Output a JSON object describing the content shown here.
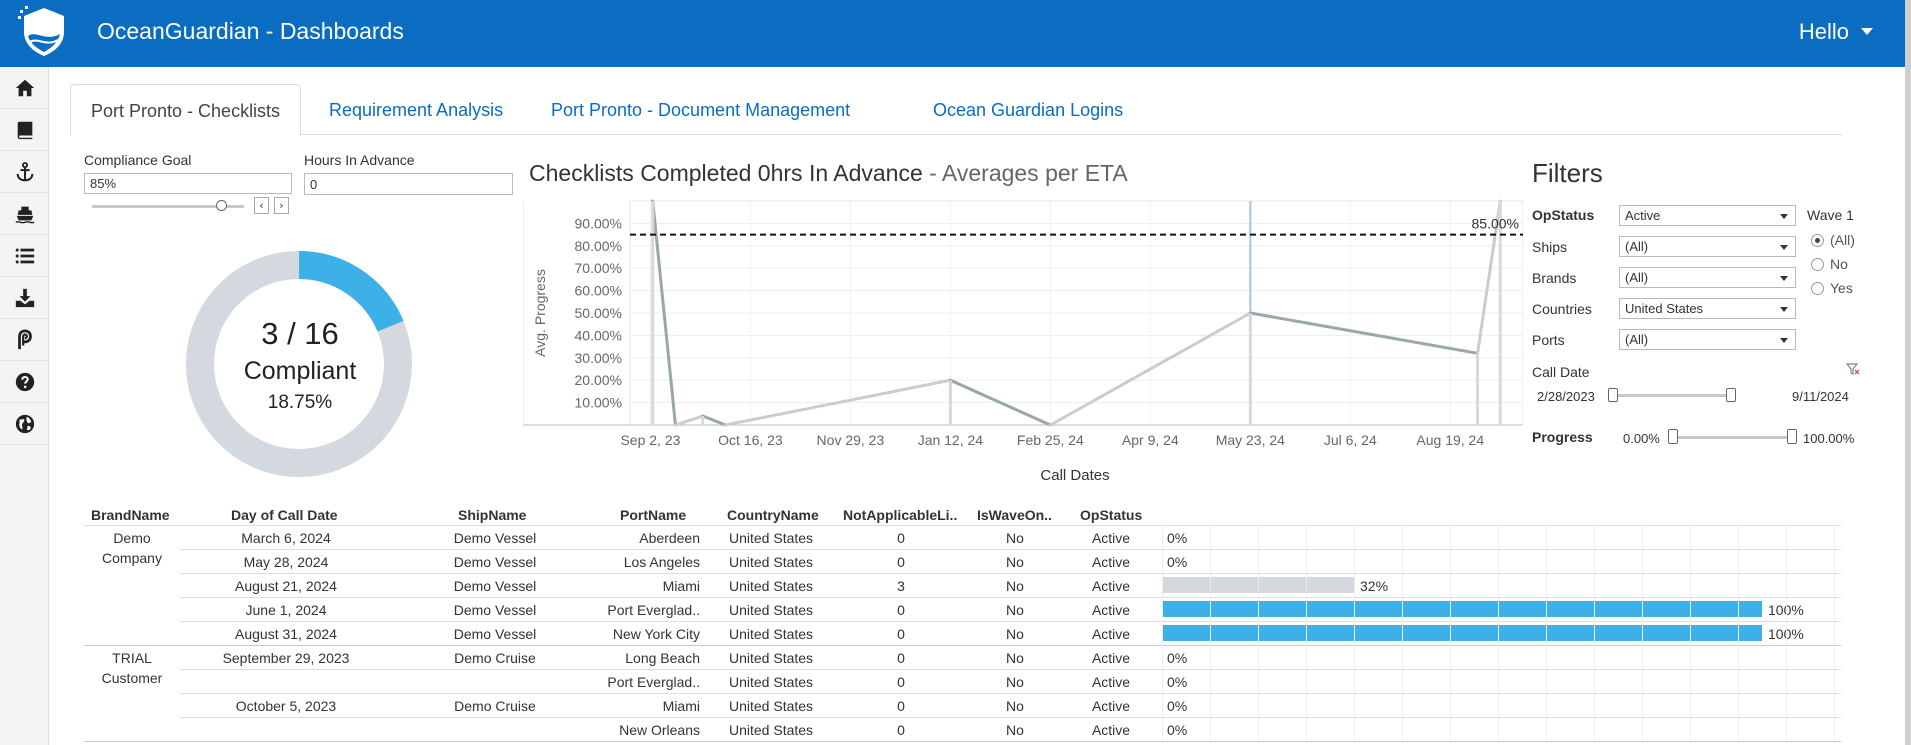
{
  "app": {
    "title": "OceanGuardian - Dashboards",
    "greeting": "Hello"
  },
  "sidebar": {
    "items": [
      {
        "icon": "home-icon"
      },
      {
        "icon": "book-icon"
      },
      {
        "icon": "anchor-icon"
      },
      {
        "icon": "ship-icon"
      },
      {
        "icon": "list-icon"
      },
      {
        "icon": "download-icon"
      },
      {
        "icon": "portpronto-icon"
      },
      {
        "icon": "help-icon"
      },
      {
        "icon": "globe-icon"
      }
    ]
  },
  "tabs": [
    {
      "label": "Port Pronto - Checklists",
      "active": true
    },
    {
      "label": "Requirement Analysis",
      "active": false
    },
    {
      "label": "Port Pronto - Document Management",
      "active": false
    },
    {
      "label": "Ocean Guardian Logins",
      "active": false
    }
  ],
  "params": {
    "compliance_goal_label": "Compliance Goal",
    "compliance_goal_value": "85%",
    "compliance_goal_level": 0.85,
    "hours_label": "Hours In Advance",
    "hours_value": "0"
  },
  "donut": {
    "count": "3 / 16",
    "label": "Compliant",
    "percent": "18.75%",
    "fraction": 0.1875,
    "fill_color": "#3eb0e8",
    "track_color": "#d3d9de"
  },
  "chart_data": {
    "type": "line",
    "title": "Checklists Completed 0hrs In Advance",
    "subtitle": "- Averages per ETA",
    "xlabel": "Call Dates",
    "ylabel": "Avg. Progress",
    "x_ticks": [
      "Sep 2, 23",
      "Oct 16, 23",
      "Nov 29, 23",
      "Jan 12, 24",
      "Feb 25, 24",
      "Apr 9, 24",
      "May 23, 24",
      "Jul 6, 24",
      "Aug 19, 24"
    ],
    "y_ticks": [
      "90.00%",
      "80.00%",
      "70.00%",
      "60.00%",
      "50.00%",
      "40.00%",
      "30.00%",
      "20.00%",
      "10.00%"
    ],
    "ylim": [
      0,
      100
    ],
    "x_range": [
      "2023-08-24",
      "2024-09-20"
    ],
    "goal_line": {
      "value": 85,
      "label": "85.00%"
    },
    "series": [
      {
        "color": "#8fa3a8",
        "points": [
          {
            "x": "2023-09-03",
            "y": 100
          },
          {
            "x": "2023-09-13",
            "y": 0
          },
          {
            "x": "2023-09-25",
            "y": 4
          },
          {
            "x": "2023-10-05",
            "y": 0
          },
          {
            "x": "2024-01-12",
            "y": 20
          },
          {
            "x": "2024-02-25",
            "y": 0
          },
          {
            "x": "2024-05-23",
            "y": 50
          },
          {
            "x": "2024-08-31",
            "y": 32
          },
          {
            "x": "2024-09-10",
            "y": 100
          }
        ]
      }
    ],
    "vertical_markers": [
      "2023-09-03",
      "2024-05-23",
      "2024-09-10"
    ],
    "grid": true
  },
  "filters": {
    "title": "Filters",
    "rows": [
      {
        "label": "OpStatus",
        "value": "Active"
      },
      {
        "label": "Ships",
        "value": "(All)"
      },
      {
        "label": "Brands",
        "value": "(All)"
      },
      {
        "label": "Countries",
        "value": "United States"
      },
      {
        "label": "Ports",
        "value": "(All)"
      }
    ],
    "wave": {
      "title": "Wave 1",
      "options": [
        "(All)",
        "No",
        "Yes"
      ],
      "selected": "(All)"
    },
    "call_date": {
      "label": "Call Date",
      "from": "2/28/2023",
      "to": "9/11/2024"
    },
    "progress": {
      "label": "Progress",
      "from": "0.00%",
      "to": "100.00%"
    }
  },
  "table": {
    "headers": [
      "BrandName",
      "Day of Call Date",
      "ShipName",
      "PortName",
      "CountryName",
      "NotApplicableLi..",
      "IsWaveOn..",
      "OpStatus"
    ],
    "groups": [
      {
        "brand": "Demo Company",
        "rows": [
          {
            "date": "March 6, 2024",
            "ship": "Demo Vessel",
            "port": "Aberdeen",
            "country": "United States",
            "na": "0",
            "wave": "No",
            "status": "Active",
            "progress": 0,
            "label": "0%"
          },
          {
            "date": "May 28, 2024",
            "ship": "Demo Vessel",
            "port": "Los Angeles",
            "country": "United States",
            "na": "0",
            "wave": "No",
            "status": "Active",
            "progress": 0,
            "label": "0%"
          },
          {
            "date": "August 21, 2024",
            "ship": "Demo Vessel",
            "port": "Miami",
            "country": "United States",
            "na": "3",
            "wave": "No",
            "status": "Active",
            "progress": 0.32,
            "label": "32%"
          },
          {
            "date": "June 1, 2024",
            "ship": "Demo Vessel",
            "port": "Port Everglad..",
            "country": "United States",
            "na": "0",
            "wave": "No",
            "status": "Active",
            "progress": 1,
            "label": "100%"
          },
          {
            "date": "August 31, 2024",
            "ship": "Demo Vessel",
            "port": "New York City",
            "country": "United States",
            "na": "0",
            "wave": "No",
            "status": "Active",
            "progress": 1,
            "label": "100%"
          }
        ]
      },
      {
        "brand": "TRIAL Customer",
        "rows": [
          {
            "date": "September 29, 2023",
            "ship": "Demo Cruise",
            "port": "Long Beach",
            "country": "United States",
            "na": "0",
            "wave": "No",
            "status": "Active",
            "progress": 0,
            "label": "0%"
          },
          {
            "date": "",
            "ship": "",
            "port": "Port Everglad..",
            "country": "United States",
            "na": "0",
            "wave": "No",
            "status": "Active",
            "progress": 0,
            "label": "0%"
          },
          {
            "date": "October 5, 2023",
            "ship": "Demo Cruise",
            "port": "Miami",
            "country": "United States",
            "na": "0",
            "wave": "No",
            "status": "Active",
            "progress": 0,
            "label": "0%"
          },
          {
            "date": "",
            "ship": "",
            "port": "New Orleans",
            "country": "United States",
            "na": "0",
            "wave": "No",
            "status": "Active",
            "progress": 0,
            "label": "0%"
          }
        ]
      }
    ]
  },
  "colors": {
    "brand_blue": "#0a6dc2",
    "bar_full": "#3eb0e8",
    "bar_partial": "#d3d9de"
  }
}
